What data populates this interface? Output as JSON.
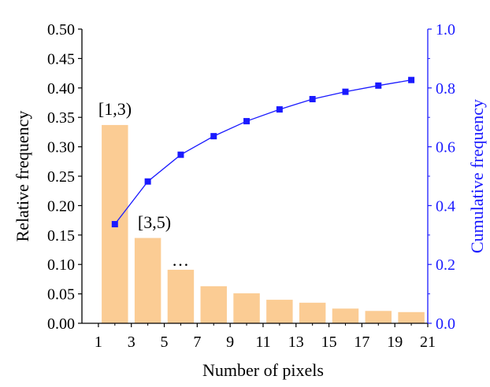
{
  "chart_data": {
    "type": "bar",
    "xlabel": "Number of pixels",
    "ylabel": "Relative frequency",
    "y2label": "Cumulative frequency",
    "xlim": [
      0,
      21
    ],
    "ylim": [
      0,
      0.5
    ],
    "y2lim": [
      0,
      1.0
    ],
    "xticks": [
      "1",
      "3",
      "5",
      "7",
      "9",
      "11",
      "13",
      "15",
      "17",
      "19",
      "21"
    ],
    "yticks": [
      "0.00",
      "0.05",
      "0.10",
      "0.15",
      "0.20",
      "0.25",
      "0.30",
      "0.35",
      "0.40",
      "0.45",
      "0.50"
    ],
    "y2ticks": [
      "0.0",
      "0.2",
      "0.4",
      "0.6",
      "0.8",
      "1.0"
    ],
    "bars": {
      "x": [
        2,
        4,
        6,
        8,
        10,
        12,
        14,
        16,
        18,
        20
      ],
      "values": [
        0.337,
        0.145,
        0.091,
        0.063,
        0.051,
        0.04,
        0.035,
        0.025,
        0.021,
        0.019
      ],
      "color": "#fbcc94"
    },
    "line": {
      "x": [
        2,
        4,
        6,
        8,
        10,
        12,
        14,
        16,
        18,
        20
      ],
      "values": [
        0.337,
        0.482,
        0.573,
        0.636,
        0.687,
        0.727,
        0.762,
        0.787,
        0.808,
        0.827
      ],
      "color": "#1a1aff",
      "marker": "square"
    },
    "annotations": [
      "[1,3)",
      "[3,5)",
      "…"
    ],
    "grid": false
  }
}
